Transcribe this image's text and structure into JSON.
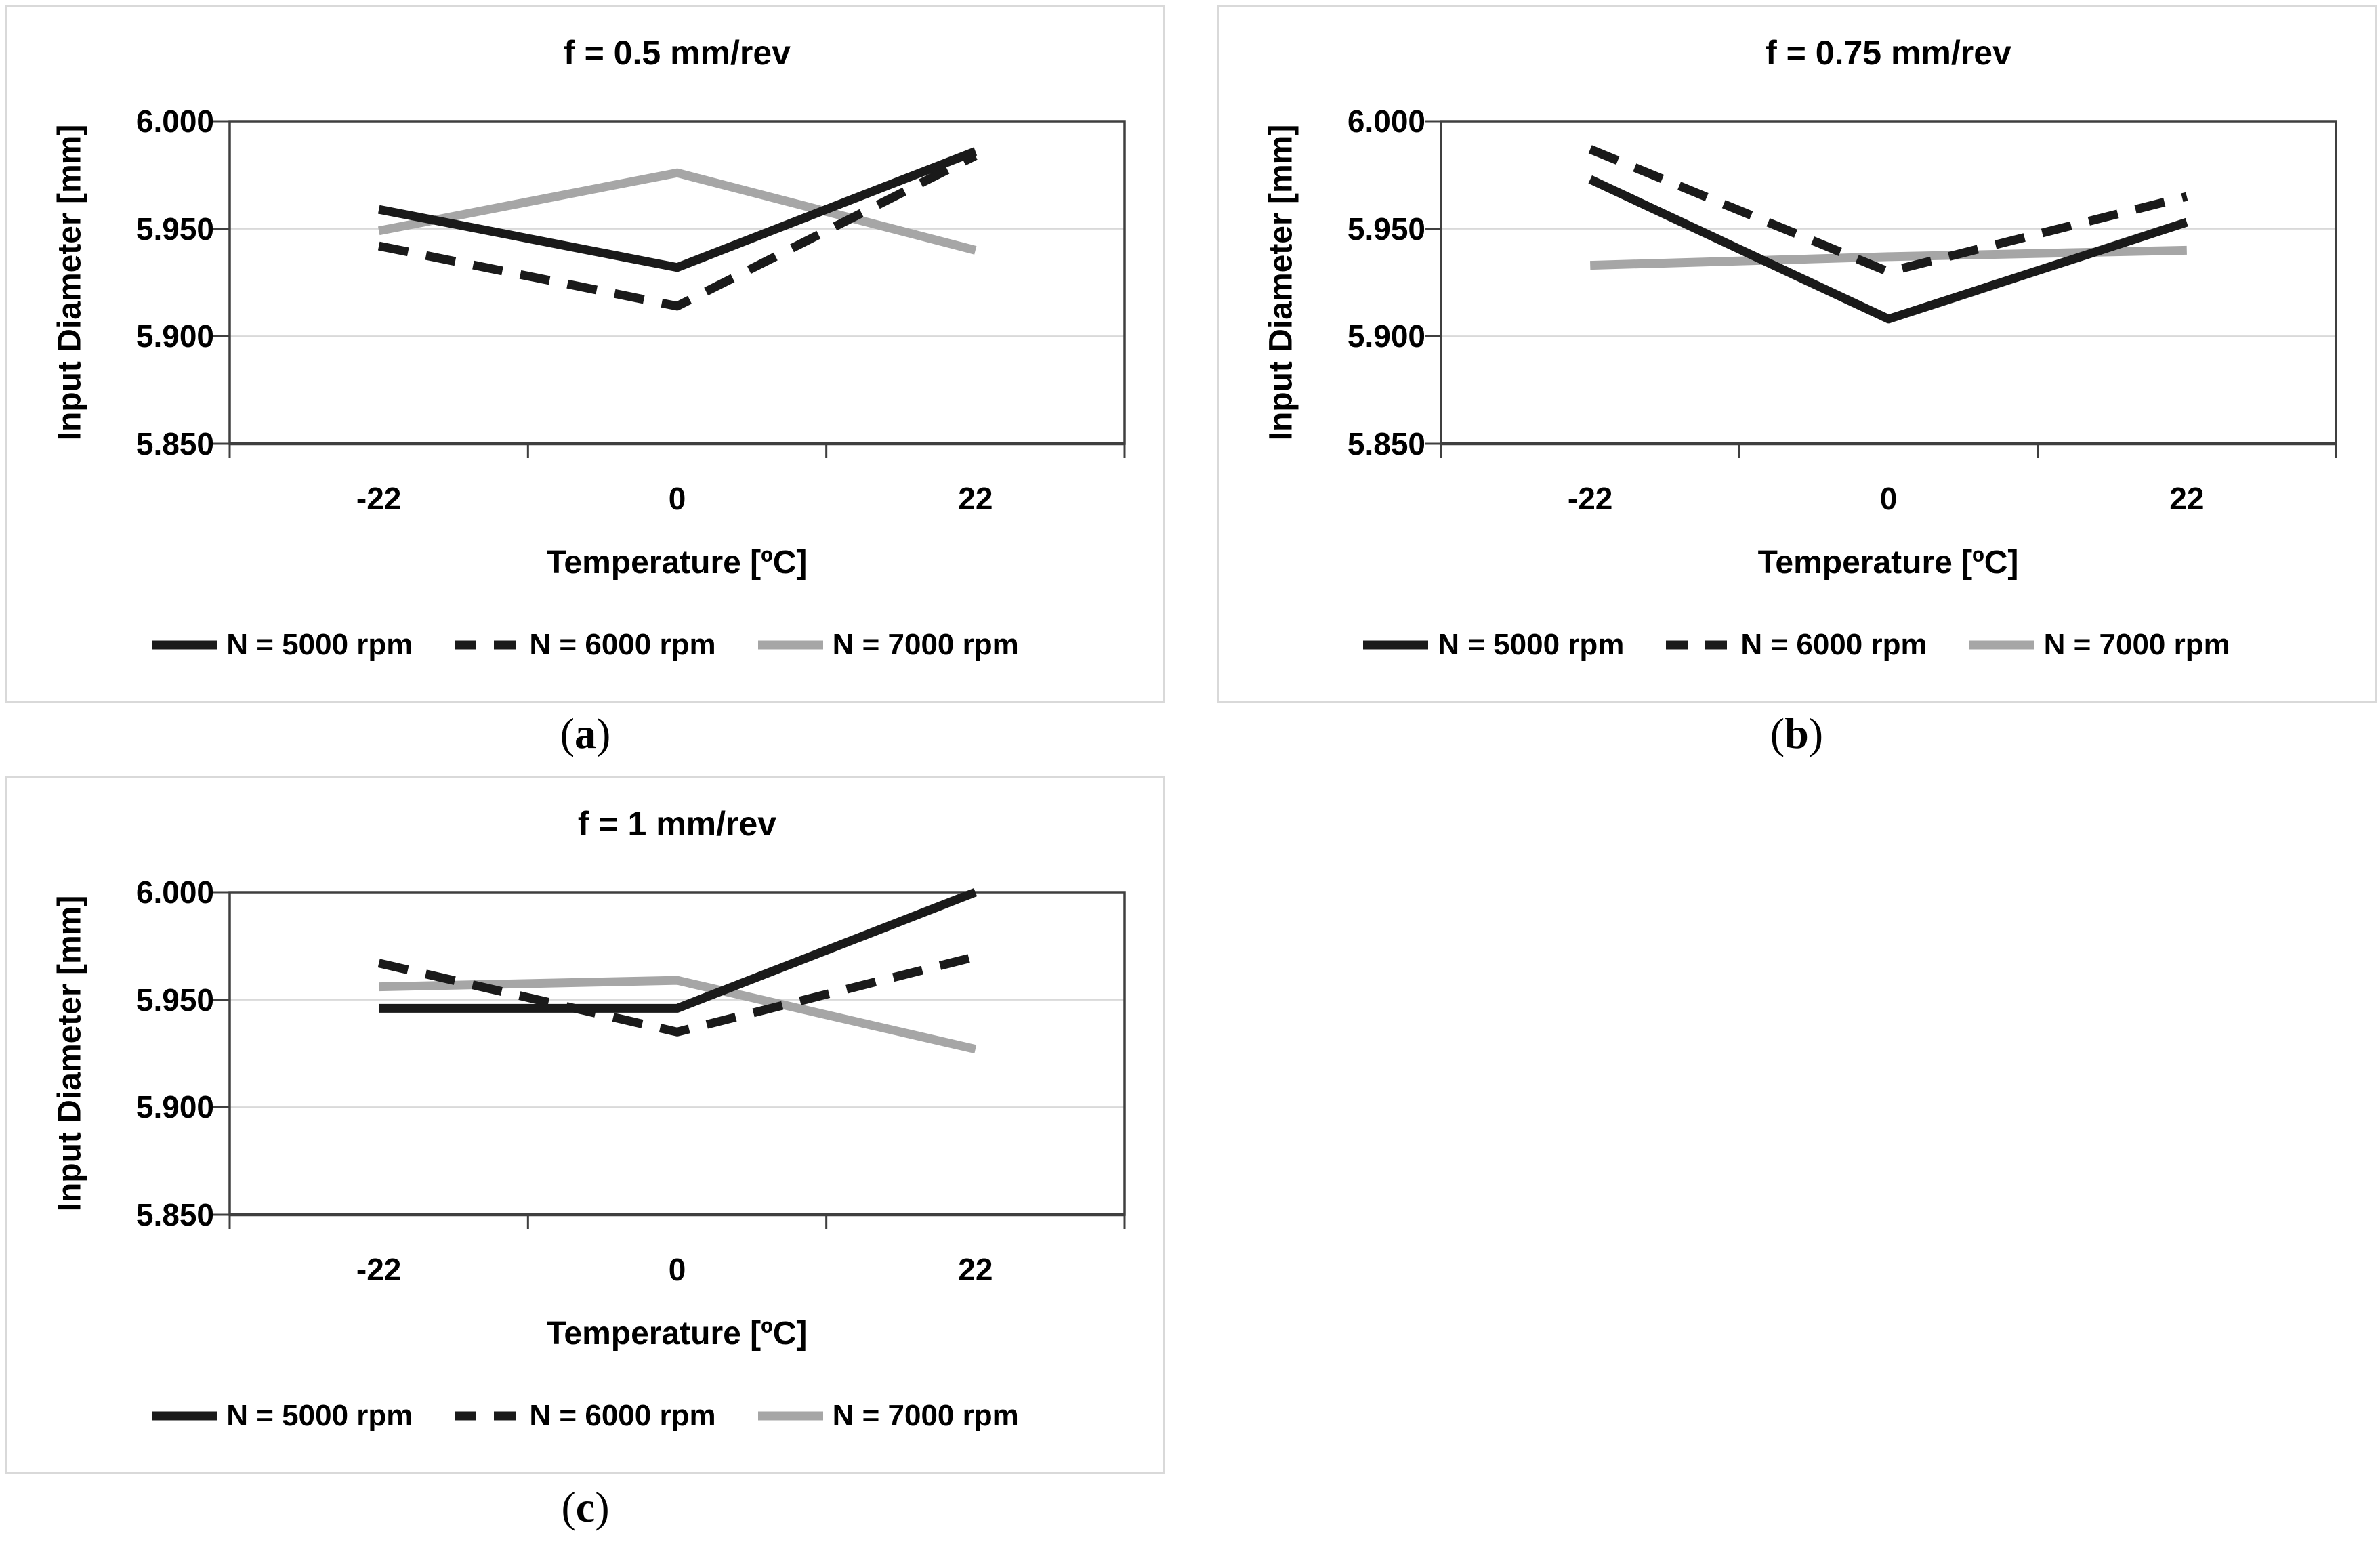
{
  "colors": {
    "series_black": "#1a1a1a",
    "series_gray": "#a6a6a6",
    "gridline": "#d9d9d9",
    "axis_line": "#3f3f3f",
    "panel_border": "#d9d9d9",
    "text": "#000000"
  },
  "axes": {
    "y_label": "Input Diameter [mm]",
    "x_label": "Temperature [ºC]",
    "y_tick_labels": [
      "6.000",
      "5.950",
      "5.900",
      "5.850"
    ],
    "y_tick_values": [
      6.0,
      5.95,
      5.9,
      5.85
    ],
    "x_tick_labels": [
      "-22",
      "0",
      "22"
    ],
    "grid": true,
    "legend_position": "bottom"
  },
  "chart_data": [
    {
      "id": "a",
      "type": "line",
      "title": "f = 0.5 mm/rev",
      "caption": "(a)",
      "xlabel": "Temperature [ºC]",
      "ylabel": "Input Diameter [mm]",
      "x": [
        -22,
        0,
        22
      ],
      "x_tick_labels": [
        "-22",
        "0",
        "22"
      ],
      "ylim": [
        5.85,
        6.0
      ],
      "series": [
        {
          "name": "N = 5000 rpm",
          "style": "solid",
          "color": "#1a1a1a",
          "values": [
            5.959,
            5.932,
            5.986
          ]
        },
        {
          "name": "N = 6000 rpm",
          "style": "dashed",
          "color": "#1a1a1a",
          "values": [
            5.942,
            5.914,
            5.984
          ]
        },
        {
          "name": "N = 7000 rpm",
          "style": "solid",
          "color": "#a6a6a6",
          "values": [
            5.949,
            5.976,
            5.94
          ]
        }
      ]
    },
    {
      "id": "b",
      "type": "line",
      "title": "f = 0.75 mm/rev",
      "caption": "(b)",
      "xlabel": "Temperature [ºC]",
      "ylabel": "Input Diameter [mm]",
      "x": [
        -22,
        0,
        22
      ],
      "x_tick_labels": [
        "-22",
        "0",
        "22"
      ],
      "ylim": [
        5.85,
        6.0
      ],
      "series": [
        {
          "name": "N = 5000 rpm",
          "style": "solid",
          "color": "#1a1a1a",
          "values": [
            5.973,
            5.908,
            5.953
          ]
        },
        {
          "name": "N = 6000 rpm",
          "style": "dashed",
          "color": "#1a1a1a",
          "values": [
            5.987,
            5.93,
            5.965
          ]
        },
        {
          "name": "N = 7000 rpm",
          "style": "solid",
          "color": "#a6a6a6",
          "values": [
            5.933,
            5.937,
            5.94
          ]
        }
      ]
    },
    {
      "id": "c",
      "type": "line",
      "title": "f = 1 mm/rev",
      "caption": "(c)",
      "xlabel": "Temperature [ºC]",
      "ylabel": "Input Diameter [mm]",
      "x": [
        -22,
        0,
        22
      ],
      "x_tick_labels": [
        "-22",
        "0",
        "22"
      ],
      "ylim": [
        5.85,
        6.0
      ],
      "series": [
        {
          "name": "N = 5000 rpm",
          "style": "solid",
          "color": "#1a1a1a",
          "values": [
            5.946,
            5.946,
            6.0
          ]
        },
        {
          "name": "N = 6000 rpm",
          "style": "dashed",
          "color": "#1a1a1a",
          "values": [
            5.967,
            5.935,
            5.97
          ]
        },
        {
          "name": "N = 7000 rpm",
          "style": "solid",
          "color": "#a6a6a6",
          "values": [
            5.956,
            5.959,
            5.927
          ]
        }
      ]
    }
  ]
}
